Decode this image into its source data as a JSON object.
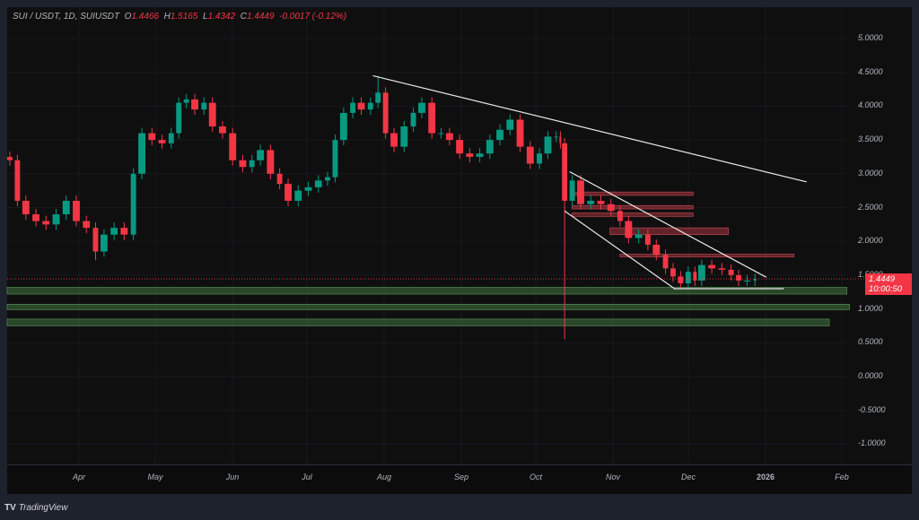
{
  "header": {
    "symbol": "SUI / USDT, 1D, SUIUSDT",
    "o_label": "O",
    "o": "1.4466",
    "h_label": "H",
    "h": "1.5165",
    "l_label": "L",
    "l": "1.4342",
    "c_label": "C",
    "c": "1.4449",
    "change": "-0.0017 (-0.12%)"
  },
  "price_tag": {
    "price": "1.4449",
    "countdown": "10:00:50"
  },
  "branding": {
    "logo": "TradingView"
  },
  "colors": {
    "up": "#089981",
    "down": "#f23645",
    "drawing": "#e8e8e8",
    "zone_green": "#2e5a2e",
    "zone_red": "#8a2a33"
  },
  "chart_data": {
    "type": "candlestick",
    "ylim": [
      -1.5,
      5.3
    ],
    "y_ticks": [
      "5.0000",
      "4.5000",
      "4.0000",
      "3.5000",
      "3.0000",
      "2.5000",
      "2.0000",
      "1.5000",
      "1.0000",
      "0.5000",
      "0.0000",
      "-0.5000",
      "-1.0000"
    ],
    "x_ticks": [
      "Apr",
      "May",
      "Jun",
      "Jul",
      "Aug",
      "Sep",
      "Oct",
      "Nov",
      "Dec",
      "2026",
      "Feb"
    ],
    "x_range": [
      "2025-03-04",
      "2026-02-24"
    ],
    "closes": [
      [
        "2025-03-04",
        3.2
      ],
      [
        "2025-03-07",
        2.6
      ],
      [
        "2025-03-10",
        2.4
      ],
      [
        "2025-03-14",
        2.3
      ],
      [
        "2025-03-18",
        2.25
      ],
      [
        "2025-03-22",
        2.4
      ],
      [
        "2025-03-26",
        2.6
      ],
      [
        "2025-03-30",
        2.3
      ],
      [
        "2025-04-03",
        2.2
      ],
      [
        "2025-04-07",
        1.85
      ],
      [
        "2025-04-10",
        2.1
      ],
      [
        "2025-04-14",
        2.2
      ],
      [
        "2025-04-18",
        2.1
      ],
      [
        "2025-04-22",
        3.0
      ],
      [
        "2025-04-25",
        3.6
      ],
      [
        "2025-04-29",
        3.5
      ],
      [
        "2025-05-03",
        3.45
      ],
      [
        "2025-05-07",
        3.6
      ],
      [
        "2025-05-10",
        4.05
      ],
      [
        "2025-05-13",
        4.1
      ],
      [
        "2025-05-16",
        3.95
      ],
      [
        "2025-05-20",
        4.05
      ],
      [
        "2025-05-23",
        3.7
      ],
      [
        "2025-05-27",
        3.6
      ],
      [
        "2025-05-31",
        3.2
      ],
      [
        "2025-06-04",
        3.1
      ],
      [
        "2025-06-08",
        3.2
      ],
      [
        "2025-06-11",
        3.35
      ],
      [
        "2025-06-15",
        3.0
      ],
      [
        "2025-06-19",
        2.85
      ],
      [
        "2025-06-22",
        2.6
      ],
      [
        "2025-06-26",
        2.75
      ],
      [
        "2025-06-30",
        2.8
      ],
      [
        "2025-07-04",
        2.9
      ],
      [
        "2025-07-08",
        2.95
      ],
      [
        "2025-07-11",
        3.5
      ],
      [
        "2025-07-14",
        3.9
      ],
      [
        "2025-07-18",
        4.05
      ],
      [
        "2025-07-21",
        3.95
      ],
      [
        "2025-07-25",
        4.05
      ],
      [
        "2025-07-28",
        4.2
      ],
      [
        "2025-07-31",
        3.6
      ],
      [
        "2025-08-03",
        3.4
      ],
      [
        "2025-08-07",
        3.7
      ],
      [
        "2025-08-11",
        3.9
      ],
      [
        "2025-08-14",
        4.05
      ],
      [
        "2025-08-18",
        3.6
      ],
      [
        "2025-08-22",
        3.6
      ],
      [
        "2025-08-25",
        3.5
      ],
      [
        "2025-08-29",
        3.3
      ],
      [
        "2025-09-02",
        3.25
      ],
      [
        "2025-09-06",
        3.3
      ],
      [
        "2025-09-10",
        3.5
      ],
      [
        "2025-09-14",
        3.65
      ],
      [
        "2025-09-18",
        3.8
      ],
      [
        "2025-09-22",
        3.4
      ],
      [
        "2025-09-26",
        3.15
      ],
      [
        "2025-09-30",
        3.3
      ],
      [
        "2025-10-03",
        3.55
      ],
      [
        "2025-10-07",
        3.55
      ],
      [
        "2025-10-09",
        3.45
      ],
      [
        "2025-10-10",
        2.6
      ],
      [
        "2025-10-13",
        2.9
      ],
      [
        "2025-10-16",
        2.55
      ],
      [
        "2025-10-20",
        2.6
      ],
      [
        "2025-10-24",
        2.55
      ],
      [
        "2025-10-28",
        2.45
      ],
      [
        "2025-11-01",
        2.3
      ],
      [
        "2025-11-04",
        2.05
      ],
      [
        "2025-11-08",
        2.1
      ],
      [
        "2025-11-12",
        1.95
      ],
      [
        "2025-11-15",
        1.8
      ],
      [
        "2025-11-19",
        1.6
      ],
      [
        "2025-11-22",
        1.48
      ],
      [
        "2025-11-25",
        1.38
      ],
      [
        "2025-11-28",
        1.55
      ],
      [
        "2025-12-01",
        1.42
      ],
      [
        "2025-12-03",
        1.65
      ],
      [
        "2025-12-07",
        1.6
      ],
      [
        "2025-12-11",
        1.58
      ],
      [
        "2025-12-15",
        1.5
      ],
      [
        "2025-12-18",
        1.42
      ],
      [
        "2025-12-21",
        1.42
      ],
      [
        "2025-12-25",
        1.4449
      ]
    ],
    "notable_wicks": [
      {
        "date": "2025-07-28",
        "high": 4.45
      },
      {
        "date": "2025-10-10",
        "low": 0.55
      },
      {
        "date": "2025-04-07",
        "low": 1.72
      }
    ],
    "current_price": 1.4449,
    "drawings": {
      "trendlines": [
        {
          "from": [
            "2025-07-27",
            4.45
          ],
          "to": [
            "2026-01-15",
            2.88
          ]
        },
        {
          "from": [
            "2025-10-13",
            3.03
          ],
          "to": [
            "2025-12-30",
            1.47
          ]
        },
        {
          "from": [
            "2025-10-11",
            2.45
          ],
          "to": [
            "2025-11-24",
            1.29
          ]
        },
        {
          "from": [
            "2025-11-24",
            1.3
          ],
          "to": [
            "2026-01-06",
            1.3
          ]
        }
      ],
      "red_zones": [
        {
          "from": "2025-10-14",
          "to": "2025-12-01",
          "top": 2.73,
          "bottom": 2.68
        },
        {
          "from": "2025-10-14",
          "to": "2025-12-01",
          "top": 2.53,
          "bottom": 2.48
        },
        {
          "from": "2025-10-14",
          "to": "2025-12-01",
          "top": 2.42,
          "bottom": 2.37
        },
        {
          "from": "2025-10-29",
          "to": "2025-12-15",
          "top": 2.2,
          "bottom": 2.1
        },
        {
          "from": "2025-11-02",
          "to": "2026-01-10",
          "top": 1.81,
          "bottom": 1.78
        }
      ],
      "green_zones": [
        {
          "from": "2025-03-04",
          "to": "2026-01-31",
          "top": 1.32,
          "bottom": 1.22
        },
        {
          "from": "2025-03-04",
          "to": "2026-02-01",
          "top": 1.07,
          "bottom": 0.99
        },
        {
          "from": "2025-03-04",
          "to": "2026-01-24",
          "top": 0.85,
          "bottom": 0.75
        }
      ]
    }
  }
}
